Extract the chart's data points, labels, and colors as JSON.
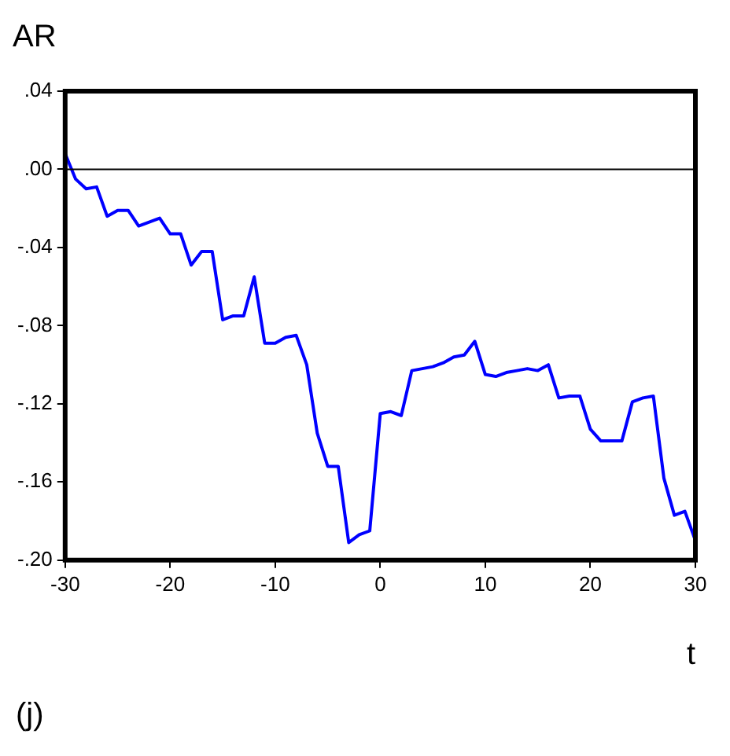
{
  "chart_data": {
    "type": "line",
    "title": "AR",
    "xlabel": "t",
    "annotations": [
      "(j)"
    ],
    "x": [
      -30,
      -29,
      -28,
      -27,
      -26,
      -25,
      -24,
      -23,
      -22,
      -21,
      -20,
      -19,
      -18,
      -17,
      -16,
      -15,
      -14,
      -13,
      -12,
      -11,
      -10,
      -9,
      -8,
      -7,
      -6,
      -5,
      -4,
      -3,
      -2,
      -1,
      0,
      1,
      2,
      3,
      4,
      5,
      6,
      7,
      8,
      9,
      10,
      11,
      12,
      13,
      14,
      15,
      16,
      17,
      18,
      19,
      20,
      21,
      22,
      23,
      24,
      25,
      26,
      27,
      28,
      29,
      30
    ],
    "series": [
      {
        "color": "#0000ff",
        "values": [
          0.008,
          -0.005,
          -0.01,
          -0.009,
          -0.024,
          -0.021,
          -0.021,
          -0.029,
          -0.027,
          -0.025,
          -0.033,
          -0.033,
          -0.049,
          -0.042,
          -0.042,
          -0.077,
          -0.075,
          -0.075,
          -0.055,
          -0.089,
          -0.089,
          -0.086,
          -0.085,
          -0.1,
          -0.135,
          -0.152,
          -0.152,
          -0.191,
          -0.187,
          -0.185,
          -0.125,
          -0.124,
          -0.126,
          -0.103,
          -0.102,
          -0.101,
          -0.099,
          -0.096,
          -0.095,
          -0.088,
          -0.105,
          -0.106,
          -0.104,
          -0.103,
          -0.102,
          -0.103,
          -0.1,
          -0.117,
          -0.116,
          -0.116,
          -0.133,
          -0.139,
          -0.139,
          -0.139,
          -0.119,
          -0.117,
          -0.116,
          -0.158,
          -0.177,
          -0.175,
          -0.19
        ]
      }
    ],
    "xlim": [
      -30,
      30
    ],
    "xticks": [
      -30,
      -20,
      -10,
      0,
      10,
      20,
      30
    ],
    "ylim": [
      -0.2,
      0.04
    ],
    "yticks": [
      {
        "value": -0.2,
        "label": "-.20"
      },
      {
        "value": -0.16,
        "label": "-.16"
      },
      {
        "value": -0.12,
        "label": "-.12"
      },
      {
        "value": -0.08,
        "label": "-.08"
      },
      {
        "value": -0.04,
        "label": "-.04"
      },
      {
        "value": 0,
        "label": ".00"
      },
      {
        "value": 0.04,
        "label": ".04"
      }
    ],
    "ref_lines": [
      {
        "axis": "y",
        "value": 0,
        "color": "#000000"
      }
    ],
    "grid": false,
    "legend": false,
    "marker": "none",
    "line_style": "solid"
  }
}
